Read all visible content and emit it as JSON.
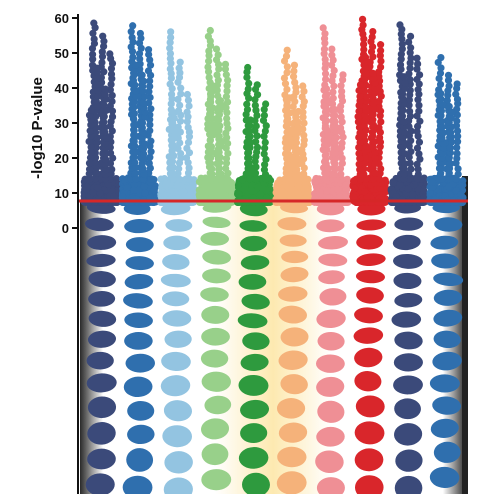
{
  "chart_data": {
    "type": "scatter",
    "subtype": "manhattan",
    "title": "",
    "xlabel": "",
    "ylabel": "-log10 P-value",
    "ylim": [
      0,
      62
    ],
    "yticks": [
      0,
      10,
      20,
      30,
      40,
      50,
      60
    ],
    "significance_line": {
      "y": 7.3,
      "color": "#d62728"
    },
    "grid": false,
    "legend": "none",
    "series": [
      {
        "color": "#3b4a7a",
        "peaks": [
          59,
          55,
          50,
          46,
          40,
          35
        ]
      },
      {
        "color": "#2f6fae",
        "peaks": [
          59,
          56,
          52,
          47,
          44
        ]
      },
      {
        "color": "#93c4e1",
        "peaks": [
          57,
          48,
          39,
          34
        ]
      },
      {
        "color": "#98d08a",
        "peaks": [
          57,
          52,
          47,
          42,
          37
        ]
      },
      {
        "color": "#2e9a3e",
        "peaks": [
          46,
          41,
          36,
          32
        ]
      },
      {
        "color": "#f5b27a",
        "peaks": [
          51,
          47,
          42,
          38,
          34
        ]
      },
      {
        "color": "#ef8f95",
        "peaks": [
          58,
          52,
          45,
          40,
          35
        ]
      },
      {
        "color": "#d9262b",
        "peaks": [
          60,
          57,
          53,
          49,
          45,
          41
        ]
      },
      {
        "color": "#3b4a7a",
        "peaks": [
          59,
          55,
          49,
          44
        ]
      },
      {
        "color": "#2f6fae",
        "peaks": [
          49,
          45,
          42,
          39,
          36
        ]
      }
    ]
  }
}
